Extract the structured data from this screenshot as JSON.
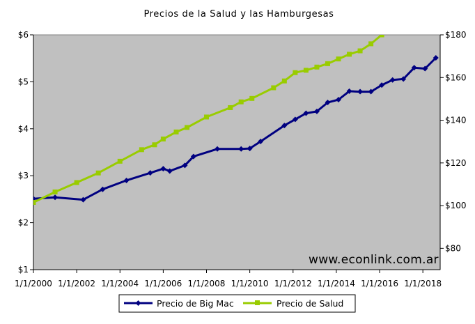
{
  "chart_data": {
    "type": "line",
    "title": "Precios de la Salud y las Hamburgesas",
    "xlim": [
      2000,
      2018.8
    ],
    "x_ticks": [
      2000,
      2002,
      2004,
      2006,
      2008,
      2010,
      2012,
      2014,
      2016,
      2018
    ],
    "x_tick_labels": [
      "1/1/2000",
      "1/1/2002",
      "1/1/2004",
      "1/1/2006",
      "1/1/2008",
      "1/1/2010",
      "1/1/2012",
      "1/1/2014",
      "1/1/2016",
      "1/1/2018"
    ],
    "y_left": {
      "range": [
        1,
        6
      ],
      "ticks": [
        1,
        2,
        3,
        4,
        5,
        6
      ],
      "tick_labels": [
        "$1",
        "$2",
        "$3",
        "$4",
        "$5",
        "$6"
      ]
    },
    "y_right": {
      "range": [
        70,
        180
      ],
      "ticks": [
        80,
        100,
        120,
        140,
        160,
        180
      ],
      "tick_labels": [
        "$80",
        "$100",
        "$120",
        "$140",
        "$160",
        "$180"
      ]
    },
    "grid": false,
    "plot_background": "#c0c0c0",
    "legend_position": "bottom",
    "series": [
      {
        "name": "Precio de Big Mac",
        "color": "#000080",
        "axis": "left",
        "marker": "diamond",
        "x": [
          2000.0,
          2001.0,
          2002.3,
          2003.2,
          2004.3,
          2005.4,
          2006.0,
          2006.3,
          2007.0,
          2007.4,
          2008.5,
          2009.6,
          2010.0,
          2010.5,
          2011.6,
          2012.1,
          2012.6,
          2013.1,
          2013.6,
          2014.1,
          2014.6,
          2015.1,
          2015.6,
          2016.1,
          2016.6,
          2017.1,
          2017.6,
          2018.1,
          2018.6
        ],
        "y": [
          2.51,
          2.54,
          2.49,
          2.71,
          2.9,
          3.06,
          3.15,
          3.1,
          3.22,
          3.41,
          3.57,
          3.57,
          3.58,
          3.73,
          4.07,
          4.2,
          4.33,
          4.37,
          4.56,
          4.62,
          4.8,
          4.79,
          4.79,
          4.93,
          5.04,
          5.06,
          5.3,
          5.28,
          5.51
        ]
      },
      {
        "name": "Precio de Salud",
        "color": "#99cc00",
        "axis": "right",
        "marker": "square",
        "x": [
          2000.0,
          2001.0,
          2002.0,
          2003.0,
          2004.0,
          2005.0,
          2005.6,
          2006.0,
          2006.6,
          2007.1,
          2008.0,
          2009.1,
          2009.6,
          2010.1,
          2011.1,
          2011.6,
          2012.1,
          2012.6,
          2013.1,
          2013.6,
          2014.1,
          2014.6,
          2015.1,
          2015.6,
          2016.1,
          2016.6
        ],
        "y": [
          101.5,
          106.4,
          110.8,
          115.3,
          120.8,
          126.2,
          128.5,
          131.2,
          134.5,
          136.6,
          141.5,
          145.9,
          148.6,
          150.2,
          155.2,
          158.4,
          162.3,
          163.4,
          164.9,
          166.5,
          168.7,
          170.9,
          172.5,
          175.8,
          180.0,
          183.0
        ]
      }
    ]
  },
  "watermark": "www.econlink.com.ar",
  "legend": {
    "bigmac_label": "Precio de Big Mac",
    "salud_label": "Precio de Salud"
  }
}
